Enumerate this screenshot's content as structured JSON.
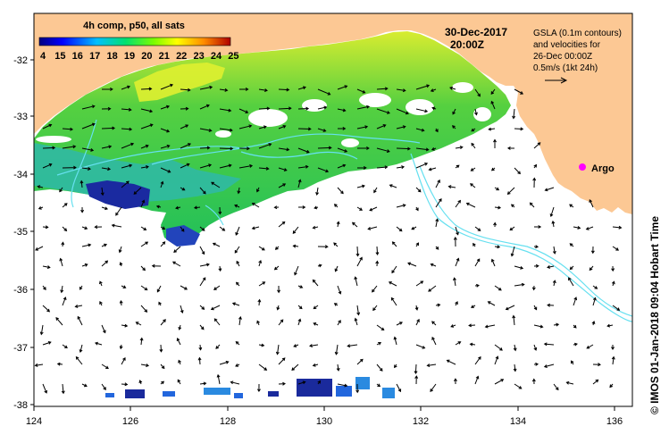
{
  "map": {
    "colorbar_title": "4h comp, p50, all sats",
    "colorbar_ticks": [
      "4",
      "15",
      "16",
      "17",
      "18",
      "19",
      "20",
      "21",
      "22",
      "23",
      "24",
      "25"
    ],
    "date": "30-Dec-2017",
    "time": "20:00Z",
    "info_lines": [
      "GSLA (0.1m contours)",
      "and velocities for",
      "26-Dec 00:00Z",
      "0.5m/s (1kt 24h)"
    ],
    "argo_label": "Argo",
    "credit": "© IMOS 01-Jan-2018 09:04 Hobart Time",
    "lat_ticks": [
      "-32",
      "-33",
      "-34",
      "-35",
      "-36",
      "-37",
      "-38"
    ],
    "lon_ticks": [
      "124",
      "126",
      "128",
      "130",
      "132",
      "134",
      "136"
    ]
  },
  "colors": {
    "land": "#fcc894",
    "argo": "#ff00ff",
    "contour": "#66e0f0",
    "sst_green": "#22cc22",
    "sst_yellow": "#e8ec1a",
    "sst_cyan": "#22bbcc",
    "sst_blue": "#2266dd",
    "sst_navy": "#101a8c"
  }
}
